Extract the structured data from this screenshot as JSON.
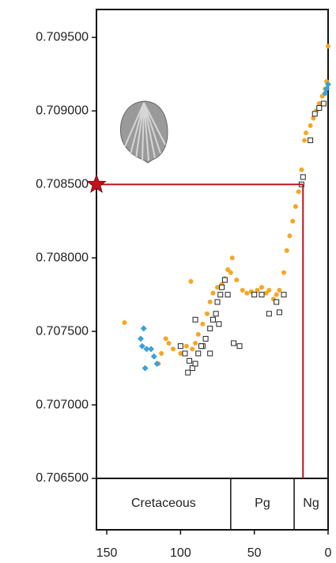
{
  "chart_data": {
    "type": "scatter",
    "xlim": [
      157,
      0
    ],
    "ylim": [
      0.7065,
      0.70969
    ],
    "xticks": [
      150,
      100,
      50,
      0
    ],
    "yticks": [
      {
        "value": 0.7065,
        "label": "0.706500"
      },
      {
        "value": 0.707,
        "label": "0.707000"
      },
      {
        "value": 0.7075,
        "label": "0.707500"
      },
      {
        "value": 0.708,
        "label": "0.708000"
      },
      {
        "value": 0.7085,
        "label": "0.708500"
      },
      {
        "value": 0.709,
        "label": "0.709000"
      },
      {
        "value": 0.7095,
        "label": "0.709500"
      }
    ],
    "periods": [
      "Cretaceous",
      "Pg",
      "Ng"
    ],
    "period_boundaries": [
      66,
      23
    ],
    "reference": {
      "x": 17,
      "y": 0.7085,
      "color": "#c0141c"
    },
    "series": [
      {
        "marker": "circle",
        "color": "#f5a623",
        "x": [
          138,
          115,
          113,
          110,
          108,
          105,
          100,
          96,
          92,
          90,
          88,
          85,
          82,
          80,
          78,
          75,
          72,
          70,
          68,
          66,
          65,
          62,
          58,
          55,
          52,
          48,
          45,
          42,
          40,
          37,
          35,
          33,
          30,
          28,
          26,
          24,
          22,
          20,
          18,
          16,
          15,
          12,
          10,
          8,
          6,
          4,
          2,
          1,
          0,
          93
        ],
        "y": [
          0.70756,
          0.70728,
          0.70735,
          0.70745,
          0.70742,
          0.70738,
          0.70735,
          0.7074,
          0.70738,
          0.70742,
          0.70748,
          0.70755,
          0.70762,
          0.7077,
          0.70776,
          0.7078,
          0.70782,
          0.70786,
          0.70792,
          0.7079,
          0.708,
          0.70785,
          0.70778,
          0.70776,
          0.70777,
          0.70778,
          0.7078,
          0.70776,
          0.70778,
          0.70772,
          0.70775,
          0.70778,
          0.7079,
          0.70805,
          0.70815,
          0.70825,
          0.70835,
          0.70845,
          0.7086,
          0.7088,
          0.70885,
          0.7089,
          0.70895,
          0.709,
          0.70905,
          0.7091,
          0.70915,
          0.7092,
          0.70944,
          0.70784
        ]
      },
      {
        "marker": "square",
        "color": "#222222",
        "x": [
          100,
          97,
          94,
          92,
          90,
          88,
          85,
          83,
          80,
          78,
          76,
          75,
          73,
          72,
          70,
          74,
          80,
          68,
          60,
          64,
          50,
          45,
          35,
          33,
          40,
          30,
          18,
          17,
          12,
          9,
          6,
          3,
          90,
          95,
          86
        ],
        "y": [
          0.7074,
          0.70735,
          0.7073,
          0.70725,
          0.70728,
          0.70735,
          0.7074,
          0.70745,
          0.70752,
          0.70758,
          0.70762,
          0.7077,
          0.70775,
          0.7078,
          0.70785,
          0.70755,
          0.70735,
          0.70775,
          0.7074,
          0.70742,
          0.70775,
          0.70775,
          0.7077,
          0.70763,
          0.70762,
          0.70775,
          0.7085,
          0.70855,
          0.7088,
          0.70898,
          0.70902,
          0.70905,
          0.70758,
          0.70722,
          0.7074
        ]
      },
      {
        "marker": "diamond",
        "color": "#3aa0d8",
        "x": [
          127,
          126,
          125,
          123,
          124,
          120,
          118,
          116,
          1,
          2,
          0
        ],
        "y": [
          0.70745,
          0.7074,
          0.70752,
          0.70738,
          0.70725,
          0.70738,
          0.70733,
          0.70728,
          0.70915,
          0.70912,
          0.70918
        ]
      }
    ]
  }
}
